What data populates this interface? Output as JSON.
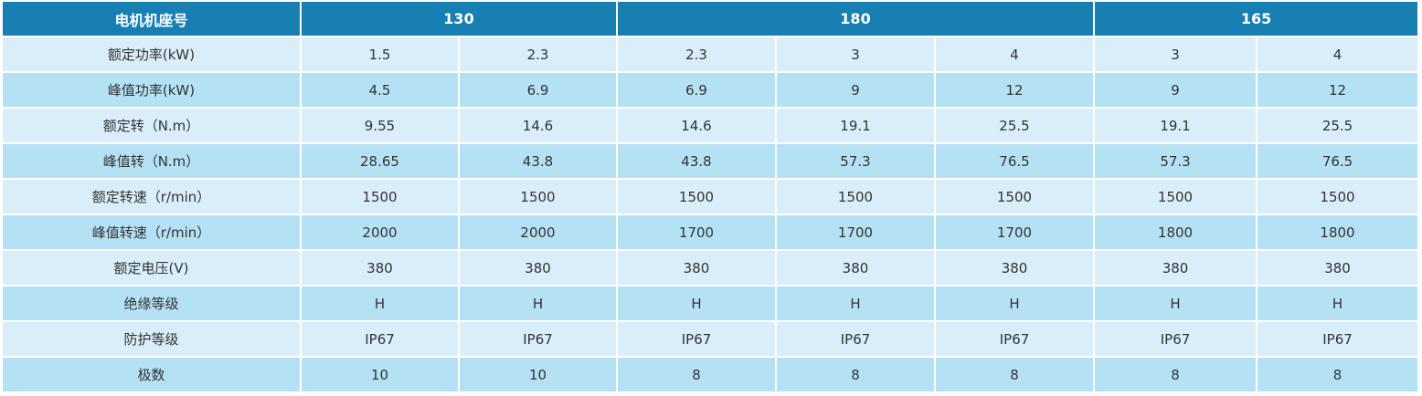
{
  "table": {
    "header": [
      "电机机座号",
      "130",
      "180",
      "165"
    ],
    "rows": [
      [
        "额定功率(kW)",
        "1.5",
        "2.3",
        "2.3",
        "3",
        "4",
        "3",
        "4"
      ],
      [
        "峰值功率(kW)",
        "4.5",
        "6.9",
        "6.9",
        "9",
        "12",
        "9",
        "12"
      ],
      [
        "额定转（N.m）",
        "9.55",
        "14.6",
        "14.6",
        "19.1",
        "25.5",
        "19.1",
        "25.5"
      ],
      [
        "峰值转（N.m）",
        "28.65",
        "43.8",
        "43.8",
        "57.3",
        "76.5",
        "57.3",
        "76.5"
      ],
      [
        "额定转速（r/min）",
        "1500",
        "1500",
        "1500",
        "1500",
        "1500",
        "1500",
        "1500"
      ],
      [
        "峰值转速（r/min）",
        "2000",
        "2000",
        "1700",
        "1700",
        "1700",
        "1800",
        "1800"
      ],
      [
        "额定电压(V)",
        "380",
        "380",
        "380",
        "380",
        "380",
        "380",
        "380"
      ],
      [
        "绝缘等级",
        "H",
        "H",
        "H",
        "H",
        "H",
        "H",
        "H"
      ],
      [
        "防护等级",
        "IP67",
        "IP67",
        "IP67",
        "IP67",
        "IP67",
        "IP67",
        "IP67"
      ],
      [
        "极数",
        "10",
        "10",
        "8",
        "8",
        "8",
        "8",
        "8"
      ]
    ]
  }
}
